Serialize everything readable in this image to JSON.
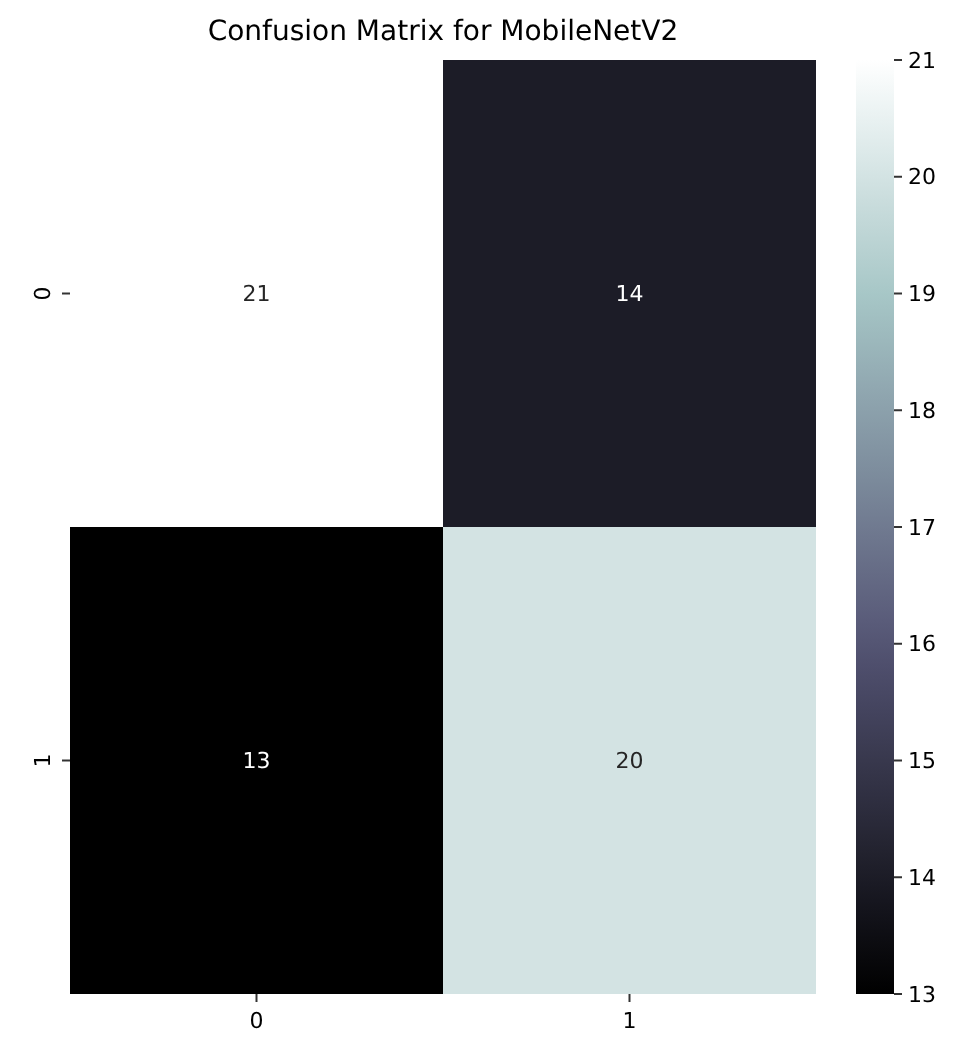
{
  "chart_data": {
    "type": "heatmap",
    "title": "Confusion Matrix for MobileNetV2",
    "categories": [
      "0",
      "1"
    ],
    "y_categories": [
      "0",
      "1"
    ],
    "cells": [
      [
        21,
        14
      ],
      [
        13,
        20
      ]
    ],
    "data_labels": true,
    "clim": [
      13,
      21
    ],
    "cticks": [
      13,
      14,
      15,
      16,
      17,
      18,
      19,
      20,
      21
    ]
  }
}
